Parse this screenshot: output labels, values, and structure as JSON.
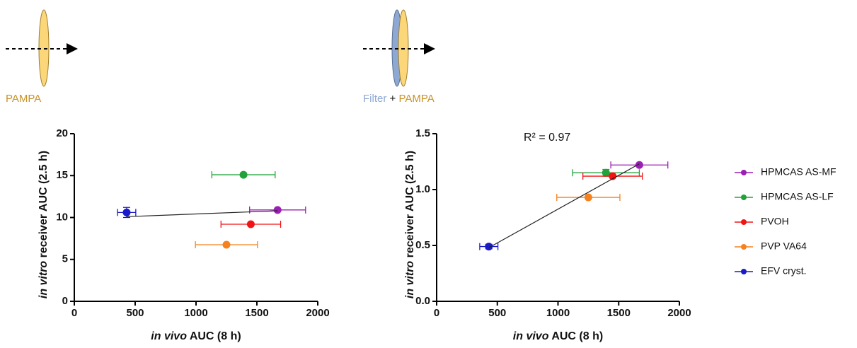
{
  "diagram": [
    {
      "labels": [
        "PAMPA"
      ]
    },
    {
      "labels": [
        "Filter",
        "+",
        "PAMPA"
      ]
    }
  ],
  "chart_data": [
    {
      "type": "scatter",
      "xlabel": [
        "in vivo",
        " AUC (8 h)"
      ],
      "ylabel": [
        "in vitro",
        " receiver AUC (2.5 h)"
      ],
      "xlim": [
        0,
        2000
      ],
      "ylim": [
        0,
        20
      ],
      "xticks": [
        0,
        500,
        1000,
        1500,
        2000
      ],
      "yticks": [
        0,
        5,
        10,
        15,
        20
      ],
      "series": [
        {
          "color": "#9b1fb5",
          "x": [
            1670
          ],
          "values": [
            10.9
          ],
          "x_errors": [
            230
          ],
          "y_errors": [
            null
          ]
        },
        {
          "color": "#22a33a",
          "x": [
            1390
          ],
          "values": [
            15.1
          ],
          "x_errors": [
            260
          ],
          "y_errors": [
            null
          ]
        },
        {
          "color": "#f01414",
          "x": [
            1450
          ],
          "values": [
            9.2
          ],
          "x_errors": [
            245
          ],
          "y_errors": [
            null
          ]
        },
        {
          "color": "#f5821f",
          "x": [
            1250
          ],
          "values": [
            6.75
          ],
          "x_errors": [
            255
          ],
          "y_errors": [
            null
          ]
        },
        {
          "color": "#1a1ac8",
          "x": [
            430
          ],
          "values": [
            10.6
          ],
          "x_errors": [
            75
          ],
          "y_errors": [
            0.6
          ]
        }
      ],
      "fit": {
        "x": [
          430,
          1670
        ],
        "values": [
          10.1,
          10.8
        ]
      }
    },
    {
      "type": "scatter",
      "xlabel": [
        "in vivo",
        " AUC (8 h)"
      ],
      "ylabel": [
        "in vitro",
        " receiver AUC (2.5 h)"
      ],
      "annotation": "R² = 0.97",
      "xlim": [
        0,
        2000
      ],
      "ylim": [
        0,
        1.5
      ],
      "xticks": [
        0,
        500,
        1000,
        1500,
        2000
      ],
      "yticks": [
        {
          "value": 0,
          "label": "0.0"
        },
        0.5,
        {
          "value": 1,
          "label": "1.0"
        },
        1.5
      ],
      "legend": "right",
      "series": [
        {
          "name": "HPMCAS AS-MF",
          "color": "#9b1fb5",
          "x": [
            1670
          ],
          "values": [
            1.22
          ],
          "x_errors": [
            235
          ],
          "y_errors": [
            null
          ]
        },
        {
          "name": "HPMCAS AS-LF",
          "color": "#22a33a",
          "x": [
            1395
          ],
          "values": [
            1.15
          ],
          "x_errors": [
            275
          ],
          "y_errors": [
            0.03
          ]
        },
        {
          "name": "PVOH",
          "color": "#f01414",
          "x": [
            1450
          ],
          "values": [
            1.12
          ],
          "x_errors": [
            245
          ],
          "y_errors": [
            null
          ]
        },
        {
          "name": "PVP VA64",
          "color": "#f5821f",
          "x": [
            1250
          ],
          "values": [
            0.93
          ],
          "x_errors": [
            260
          ],
          "y_errors": [
            null
          ]
        },
        {
          "name": "EFV cryst.",
          "color": "#1a1ac8",
          "x": [
            430
          ],
          "values": [
            0.49
          ],
          "x_errors": [
            75
          ],
          "y_errors": [
            0.02
          ]
        }
      ],
      "fit": {
        "x": [
          430,
          1670
        ],
        "values": [
          0.48,
          1.23
        ]
      }
    }
  ]
}
